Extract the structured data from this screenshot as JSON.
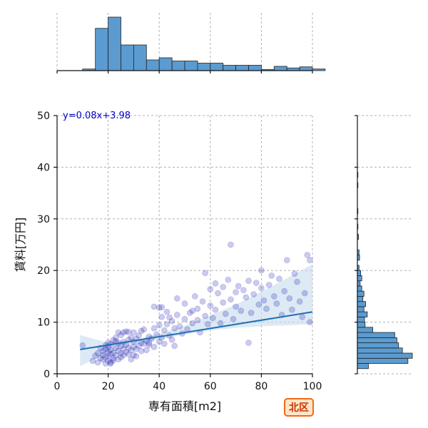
{
  "chart_data": {
    "type": "scatter",
    "xlabel": "専有面積[m2]",
    "ylabel": "賃料[万円]",
    "xlim": [
      0,
      100
    ],
    "ylim": [
      0,
      50
    ],
    "xticks": [
      "0",
      "20",
      "40",
      "60",
      "80",
      "100"
    ],
    "yticks": [
      "0",
      "10",
      "20",
      "30",
      "40",
      "50"
    ],
    "grid": true,
    "regression": {
      "label": "y=0.08x+3.98",
      "slope": 0.08,
      "intercept": 3.98,
      "x_range": [
        9,
        100
      ]
    },
    "confidence_band": {
      "x": [
        9,
        20,
        30,
        40,
        50,
        60,
        70,
        80,
        90,
        100
      ],
      "lower": [
        1.5,
        4.0,
        5.6,
        6.7,
        7.6,
        8.4,
        8.9,
        9.2,
        9.4,
        9.6
      ],
      "upper": [
        7.5,
        6.0,
        6.6,
        7.8,
        9.3,
        11.3,
        13.4,
        15.9,
        18.5,
        21.2
      ]
    },
    "marginal_x_histogram": {
      "bins": [
        [
          10,
          15,
          0.03
        ],
        [
          15,
          20,
          0.79
        ],
        [
          20,
          25,
          1.0
        ],
        [
          25,
          30,
          0.48
        ],
        [
          30,
          35,
          0.48
        ],
        [
          35,
          40,
          0.2
        ],
        [
          40,
          45,
          0.24
        ],
        [
          45,
          50,
          0.18
        ],
        [
          50,
          55,
          0.18
        ],
        [
          55,
          60,
          0.14
        ],
        [
          60,
          65,
          0.14
        ],
        [
          65,
          70,
          0.1
        ],
        [
          70,
          75,
          0.1
        ],
        [
          75,
          80,
          0.1
        ],
        [
          80,
          85,
          0.02
        ],
        [
          85,
          90,
          0.08
        ],
        [
          90,
          95,
          0.05
        ],
        [
          95,
          100,
          0.07
        ],
        [
          100,
          105,
          0.03
        ]
      ]
    },
    "marginal_y_histogram": {
      "bins": [
        [
          1,
          2,
          0.2
        ],
        [
          2,
          3,
          0.92
        ],
        [
          3,
          4,
          1.0
        ],
        [
          4,
          5,
          0.82
        ],
        [
          5,
          6,
          0.75
        ],
        [
          6,
          7,
          0.72
        ],
        [
          7,
          8,
          0.68
        ],
        [
          8,
          9,
          0.28
        ],
        [
          9,
          10,
          0.14
        ],
        [
          10,
          11,
          0.13
        ],
        [
          11,
          12,
          0.18
        ],
        [
          12,
          13,
          0.12
        ],
        [
          13,
          14,
          0.15
        ],
        [
          14,
          15,
          0.1
        ],
        [
          15,
          16,
          0.12
        ],
        [
          16,
          17,
          0.08
        ],
        [
          17,
          18,
          0.05
        ],
        [
          18,
          19,
          0.08
        ],
        [
          19,
          20,
          0.06
        ],
        [
          20,
          21,
          0.03
        ],
        [
          22,
          23,
          0.04
        ],
        [
          23,
          24,
          0.03
        ],
        [
          26,
          27,
          0.02
        ],
        [
          28,
          29,
          0.01
        ],
        [
          31,
          32,
          0.01
        ],
        [
          36,
          37,
          0.01
        ],
        [
          38,
          39,
          0.01
        ]
      ]
    },
    "points": [
      [
        10,
        5.5
      ],
      [
        14,
        2.5
      ],
      [
        15,
        3.5
      ],
      [
        16,
        4.0
      ],
      [
        16,
        2.2
      ],
      [
        17,
        3.0
      ],
      [
        17,
        5.0
      ],
      [
        18,
        2.8
      ],
      [
        18,
        3.6
      ],
      [
        18,
        4.4
      ],
      [
        19,
        2.0
      ],
      [
        19,
        3.2
      ],
      [
        19,
        5.5
      ],
      [
        19,
        4.8
      ],
      [
        20,
        2.5
      ],
      [
        20,
        3.4
      ],
      [
        20,
        4.2
      ],
      [
        20,
        6.0
      ],
      [
        20,
        5.2
      ],
      [
        21,
        2.2
      ],
      [
        21,
        3.8
      ],
      [
        21,
        4.6
      ],
      [
        21,
        5.8
      ],
      [
        22,
        3.0
      ],
      [
        22,
        4.0
      ],
      [
        22,
        6.5
      ],
      [
        22,
        2.6
      ],
      [
        23,
        3.6
      ],
      [
        23,
        5.0
      ],
      [
        23,
        7.0
      ],
      [
        24,
        2.8
      ],
      [
        24,
        4.4
      ],
      [
        24,
        6.0
      ],
      [
        24,
        8.0
      ],
      [
        25,
        3.2
      ],
      [
        25,
        5.4
      ],
      [
        25,
        4.0
      ],
      [
        25,
        7.5
      ],
      [
        26,
        3.6
      ],
      [
        26,
        6.2
      ],
      [
        26,
        4.8
      ],
      [
        27,
        4.2
      ],
      [
        27,
        5.6
      ],
      [
        27,
        8.2
      ],
      [
        28,
        3.8
      ],
      [
        28,
        6.6
      ],
      [
        28,
        5.0
      ],
      [
        29,
        4.6
      ],
      [
        29,
        7.0
      ],
      [
        30,
        5.2
      ],
      [
        30,
        3.6
      ],
      [
        30,
        8.0
      ],
      [
        30,
        6.2
      ],
      [
        31,
        4.8
      ],
      [
        31,
        6.8
      ],
      [
        32,
        5.4
      ],
      [
        32,
        7.4
      ],
      [
        33,
        4.4
      ],
      [
        33,
        6.0
      ],
      [
        34,
        5.8
      ],
      [
        34,
        8.6
      ],
      [
        35,
        6.4
      ],
      [
        35,
        4.6
      ],
      [
        36,
        7.2
      ],
      [
        36,
        5.6
      ],
      [
        37,
        6.8
      ],
      [
        38,
        5.2
      ],
      [
        38,
        8.8
      ],
      [
        38,
        13.0
      ],
      [
        39,
        7.6
      ],
      [
        40,
        6.2
      ],
      [
        40,
        9.4
      ],
      [
        40,
        12.8
      ],
      [
        41,
        7.0
      ],
      [
        41,
        11.0
      ],
      [
        42,
        5.8
      ],
      [
        42,
        8.4
      ],
      [
        43,
        9.6
      ],
      [
        43,
        12.0
      ],
      [
        44,
        7.4
      ],
      [
        45,
        10.2
      ],
      [
        45,
        6.6
      ],
      [
        46,
        8.8
      ],
      [
        47,
        11.4
      ],
      [
        47,
        14.6
      ],
      [
        48,
        9.2
      ],
      [
        49,
        7.8
      ],
      [
        50,
        10.6
      ],
      [
        50,
        13.6
      ],
      [
        51,
        8.6
      ],
      [
        52,
        11.8
      ],
      [
        53,
        9.8
      ],
      [
        54,
        15.0
      ],
      [
        55,
        10.4
      ],
      [
        55,
        12.6
      ],
      [
        56,
        8.0
      ],
      [
        57,
        14.0
      ],
      [
        58,
        11.2
      ],
      [
        58,
        19.5
      ],
      [
        59,
        9.6
      ],
      [
        60,
        13.2
      ],
      [
        60,
        16.4
      ],
      [
        61,
        10.8
      ],
      [
        62,
        12.4
      ],
      [
        62,
        17.5
      ],
      [
        63,
        15.6
      ],
      [
        64,
        9.8
      ],
      [
        65,
        13.8
      ],
      [
        65,
        16.8
      ],
      [
        66,
        11.6
      ],
      [
        67,
        18.2
      ],
      [
        68,
        14.4
      ],
      [
        68,
        25.0
      ],
      [
        69,
        10.6
      ],
      [
        70,
        15.8
      ],
      [
        70,
        13.0
      ],
      [
        71,
        17.0
      ],
      [
        72,
        12.2
      ],
      [
        73,
        16.2
      ],
      [
        74,
        14.8
      ],
      [
        75,
        18.0
      ],
      [
        75,
        6.0
      ],
      [
        76,
        11.8
      ],
      [
        77,
        15.4
      ],
      [
        78,
        17.6
      ],
      [
        79,
        13.4
      ],
      [
        80,
        20.0
      ],
      [
        80,
        16.6
      ],
      [
        81,
        14.2
      ],
      [
        82,
        12.6
      ],
      [
        83,
        17.2
      ],
      [
        84,
        19.0
      ],
      [
        85,
        15.0
      ],
      [
        86,
        13.6
      ],
      [
        87,
        18.4
      ],
      [
        88,
        11.4
      ],
      [
        89,
        16.0
      ],
      [
        90,
        22.0
      ],
      [
        91,
        14.6
      ],
      [
        92,
        12.4
      ],
      [
        93,
        19.4
      ],
      [
        94,
        17.8
      ],
      [
        95,
        14.0
      ],
      [
        96,
        11.0
      ],
      [
        97,
        15.6
      ],
      [
        98,
        23.0
      ],
      [
        99,
        22.0
      ],
      [
        99,
        10.0
      ],
      [
        28,
        8.1
      ],
      [
        33,
        8.3
      ],
      [
        36,
        6.0
      ],
      [
        23,
        6.3
      ],
      [
        41,
        12.9
      ],
      [
        29,
        2.8
      ],
      [
        46,
        5.4
      ],
      [
        53,
        12.2
      ],
      [
        31,
        3.4
      ],
      [
        26,
        8.0
      ],
      [
        21,
        2.0
      ],
      [
        44,
        10.9
      ]
    ]
  },
  "badge": {
    "label": "北区",
    "color": "#f06a1a"
  },
  "colors": {
    "points": "#1010b0",
    "line": "#1f6fb2",
    "band": "#c6dbed",
    "hist": "#5b9bd0"
  }
}
